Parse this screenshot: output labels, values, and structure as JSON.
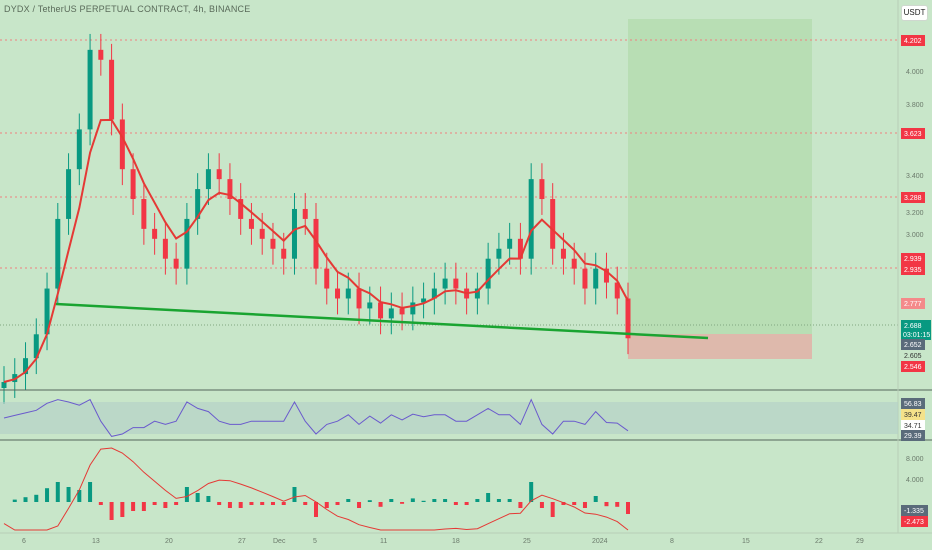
{
  "title": "DYDX / TetherUS PERPETUAL CONTRACT, 4h, BINANCE",
  "currency_button": "USDT",
  "colors": {
    "up": "#089981",
    "down": "#f23645",
    "ema": "#e53935",
    "ema_up": "#66e34f",
    "trendline": "#1aa431",
    "bg": "#c8e6c9"
  },
  "price_axis": {
    "ticks": [
      "4.000",
      "3.800",
      "3.400",
      "3.200",
      "3.000"
    ]
  },
  "price_labels": [
    {
      "text": "4.202",
      "color": "#f23645"
    },
    {
      "text": "3.623",
      "color": "#f23645"
    },
    {
      "text": "3.288",
      "color": "#f23645"
    },
    {
      "text": "2.939",
      "color": "#f23645"
    },
    {
      "text": "2.935",
      "color": "#f23645"
    },
    {
      "text": "2.777",
      "color": "#f48a8a"
    },
    {
      "text": "2.688",
      "color": "#089981"
    },
    {
      "text": "03:01:15",
      "color": "#089981"
    },
    {
      "text": "2.652",
      "color": "#5a6b7a"
    },
    {
      "text": "2.605",
      "color": "#c8e6c9"
    },
    {
      "text": "2.546",
      "color": "#f23645"
    }
  ],
  "rsi_labels": [
    {
      "text": "56.83",
      "color": "#ffffff"
    },
    {
      "text": "39.47",
      "color": "#fff3b0"
    },
    {
      "text": "34.71",
      "color": "#ffffff"
    },
    {
      "text": "29.39",
      "color": "#5a6b7a"
    }
  ],
  "macd_axis": {
    "ticks": [
      "8.000",
      "4.000"
    ]
  },
  "macd_labels": [
    {
      "text": "-1.335",
      "color": "#ffffff"
    },
    {
      "text": "-2.473",
      "color": "#f23645"
    }
  ],
  "time_axis": [
    "6",
    "13",
    "20",
    "27",
    "Dec",
    "5",
    "11",
    "18",
    "25",
    "2024",
    "8",
    "15",
    "22",
    "29"
  ],
  "chart_data": {
    "type": "line",
    "title": "DYDX / TetherUS PERPETUAL CONTRACT, 4h, BINANCE",
    "ylim": [
      2.45,
      4.3
    ],
    "series": [
      {
        "y": [
          2.48,
          2.52,
          2.6,
          2.72,
          2.95,
          3.3,
          3.55,
          3.75,
          4.15,
          4.1,
          3.8,
          3.55,
          3.4,
          3.25,
          3.2,
          3.1,
          3.05,
          3.3,
          3.45,
          3.55,
          3.5,
          3.4,
          3.3,
          3.25,
          3.2,
          3.15,
          3.1,
          3.35,
          3.3,
          3.05,
          2.95,
          2.9,
          2.95,
          2.85,
          2.88,
          2.8,
          2.85,
          2.82,
          2.88,
          2.9,
          2.95,
          3.0,
          2.95,
          2.9,
          2.95,
          3.1,
          3.15,
          3.2,
          3.1,
          3.5,
          3.4,
          3.15,
          3.1,
          3.05,
          2.95,
          3.05,
          2.98,
          2.9,
          2.7
        ]
      }
    ],
    "price_levels": [
      4.202,
      3.623,
      3.288,
      2.935,
      2.688
    ],
    "trendline": [
      [
        0,
        2.77
      ],
      [
        66,
        2.65
      ]
    ],
    "rsi": {
      "ylim": [
        20,
        70
      ],
      "levels": [
        56.83,
        39.47,
        34.71,
        29.39
      ]
    },
    "macd": {
      "ylim": [
        -3.2,
        10
      ],
      "levels": [
        -1.335,
        -2.473
      ]
    }
  }
}
